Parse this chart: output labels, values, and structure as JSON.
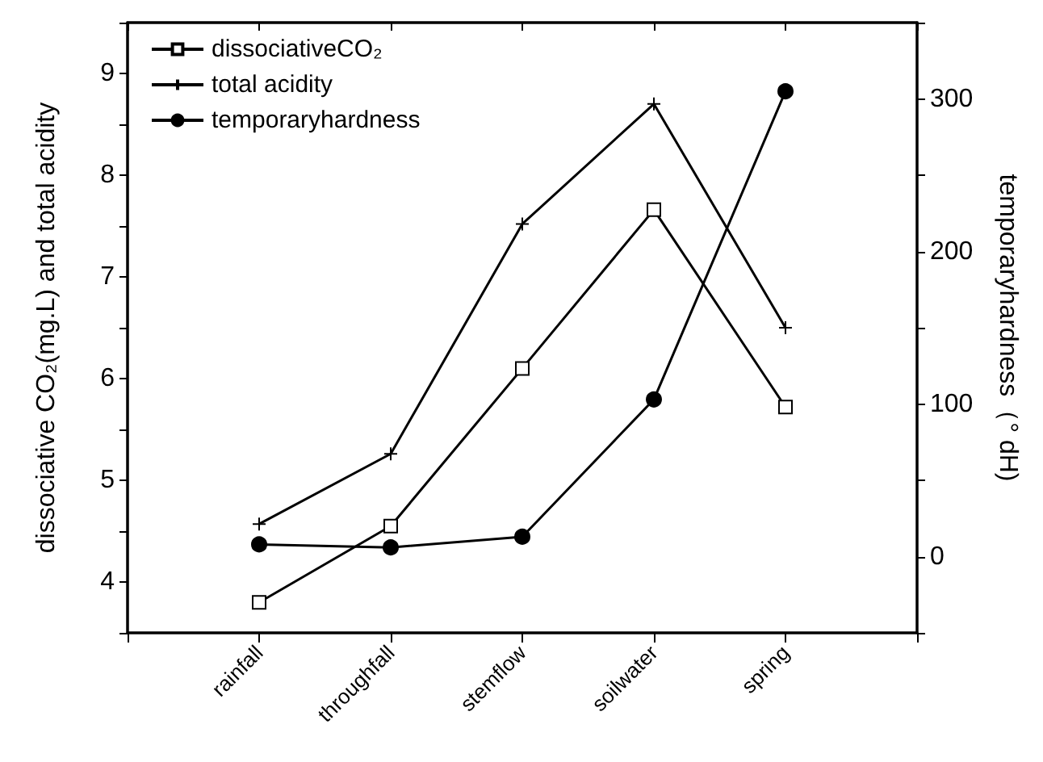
{
  "chart_data": {
    "type": "line",
    "categories": [
      null,
      "rainfall",
      "throughfall",
      "stemflow",
      "soilwater",
      "spring",
      null
    ],
    "series": [
      {
        "name": "dissociativeCO₂",
        "color": "#000000",
        "marker": "square",
        "values": [
          null,
          3.8,
          4.55,
          6.1,
          7.66,
          5.72,
          null
        ]
      },
      {
        "name": "total acidity",
        "color": "#000000",
        "marker": "cross",
        "values": [
          null,
          4.57,
          5.26,
          7.52,
          8.7,
          6.5,
          null
        ]
      },
      {
        "name": "temporaryhardness",
        "color": "#000000",
        "marker": "circle",
        "axis": "y2",
        "values": [
          null,
          8,
          6,
          13,
          103,
          305,
          null
        ]
      }
    ],
    "ylabel": "dissociative CO₂(mg.L) and total acidity",
    "y2label": "temporaryhardness（° dH)",
    "ylim": [
      3.5,
      9.5
    ],
    "yticks": [
      4,
      5,
      6,
      7,
      8,
      9
    ],
    "y2lim": [
      -50,
      350
    ],
    "y2ticks": [
      0,
      100,
      200,
      300
    ],
    "legend": "top left",
    "grid": false,
    "line_style": "solid"
  }
}
